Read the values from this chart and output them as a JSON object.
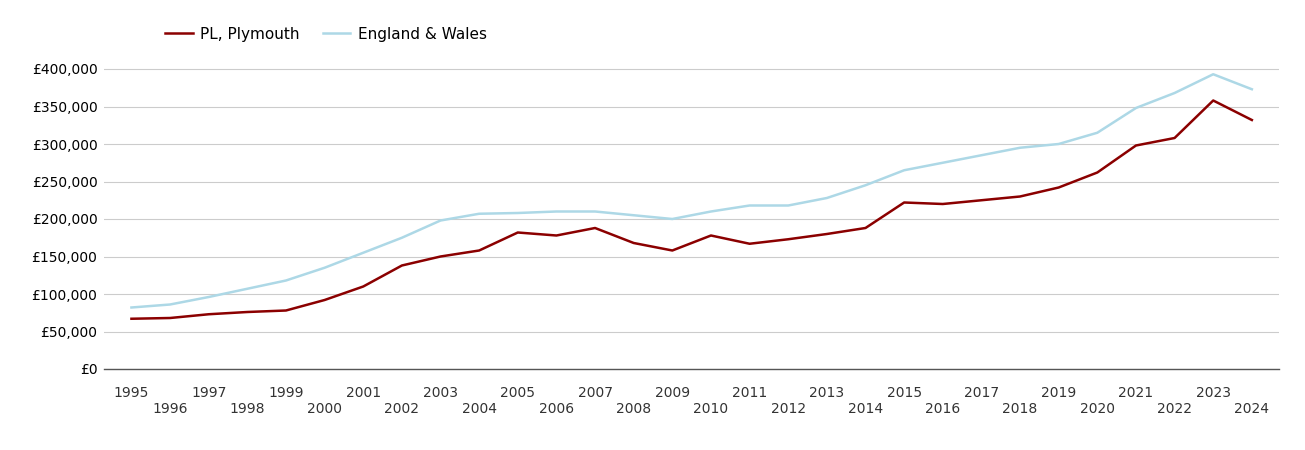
{
  "years": [
    1995,
    1996,
    1997,
    1998,
    1999,
    2000,
    2001,
    2002,
    2003,
    2004,
    2005,
    2006,
    2007,
    2008,
    2009,
    2010,
    2011,
    2012,
    2013,
    2014,
    2015,
    2016,
    2017,
    2018,
    2019,
    2020,
    2021,
    2022,
    2023,
    2024
  ],
  "plymouth": [
    67000,
    68000,
    73000,
    76000,
    78000,
    92000,
    110000,
    138000,
    150000,
    158000,
    182000,
    178000,
    188000,
    168000,
    158000,
    178000,
    167000,
    173000,
    180000,
    188000,
    222000,
    220000,
    225000,
    230000,
    242000,
    262000,
    298000,
    308000,
    358000,
    332000
  ],
  "england_wales": [
    82000,
    86000,
    96000,
    107000,
    118000,
    135000,
    155000,
    175000,
    198000,
    207000,
    208000,
    210000,
    210000,
    205000,
    200000,
    210000,
    218000,
    218000,
    228000,
    245000,
    265000,
    275000,
    285000,
    295000,
    300000,
    315000,
    348000,
    368000,
    393000,
    373000
  ],
  "plymouth_color": "#8B0000",
  "england_wales_color": "#ADD8E6",
  "background_color": "#ffffff",
  "grid_color": "#cccccc",
  "ylim": [
    0,
    420000
  ],
  "yticks": [
    0,
    50000,
    100000,
    150000,
    200000,
    250000,
    300000,
    350000,
    400000
  ],
  "ytick_labels": [
    "£0",
    "£50,000",
    "£100,000",
    "£150,000",
    "£200,000",
    "£250,000",
    "£300,000",
    "£350,000",
    "£400,000"
  ],
  "legend_labels": [
    "PL, Plymouth",
    "England & Wales"
  ],
  "line_width": 1.8,
  "x_odd_ticks": [
    1995,
    1997,
    1999,
    2001,
    2003,
    2005,
    2007,
    2009,
    2011,
    2013,
    2015,
    2017,
    2019,
    2021,
    2023
  ],
  "x_even_ticks": [
    1996,
    1998,
    2000,
    2002,
    2004,
    2006,
    2008,
    2010,
    2012,
    2014,
    2016,
    2018,
    2020,
    2022,
    2024
  ],
  "xlim": [
    1994.3,
    2024.7
  ]
}
